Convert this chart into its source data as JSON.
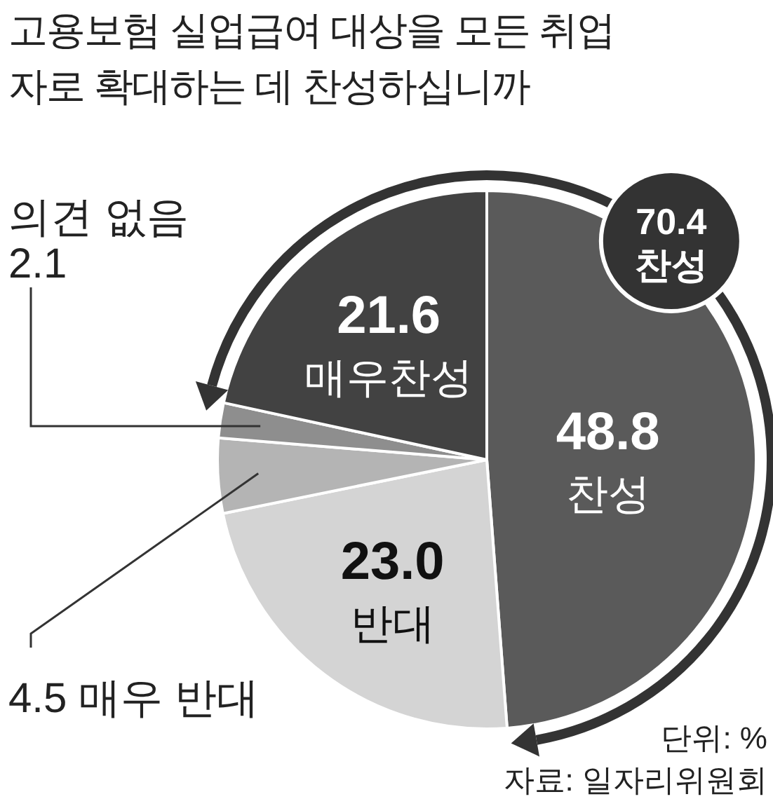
{
  "chart_data": {
    "type": "pie",
    "title": "고용보험 실업급여 대상을 모든 취업자로 확대하는 데 찬성하십니까",
    "categories": [
      "찬성",
      "반대",
      "매우 반대",
      "의견 없음",
      "매우찬성"
    ],
    "values": [
      48.8,
      23.0,
      4.5,
      2.1,
      21.6
    ],
    "colors": [
      "#5a5a5a",
      "#d4d4d4",
      "#b4b4b4",
      "#8e8e8e",
      "#424242"
    ],
    "value_labels": [
      "48.8",
      "23.0",
      "4.5",
      "2.1",
      "21.6"
    ],
    "annotations": [
      "70.4 찬성",
      "단위: %",
      "자료: 일자리위원회"
    ]
  }
}
